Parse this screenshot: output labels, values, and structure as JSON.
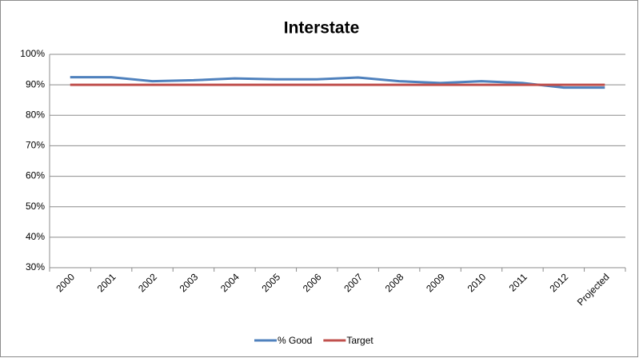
{
  "chart_data": {
    "type": "line",
    "title": "Interstate",
    "categories": [
      "2000",
      "2001",
      "2002",
      "2003",
      "2004",
      "2005",
      "2006",
      "2007",
      "2008",
      "2009",
      "2010",
      "2011",
      "2012",
      "Projected"
    ],
    "series": [
      {
        "name": "% Good",
        "color": "#4f81bd",
        "values": [
          92.5,
          92.5,
          91.2,
          91.5,
          92.1,
          91.8,
          91.8,
          92.4,
          91.2,
          90.6,
          91.2,
          90.6,
          89.1,
          89.1
        ]
      },
      {
        "name": "Target",
        "color": "#c0504d",
        "values": [
          90,
          90,
          90,
          90,
          90,
          90,
          90,
          90,
          90,
          90,
          90,
          90,
          90,
          90
        ]
      }
    ],
    "ylim": [
      30,
      100
    ],
    "yticks": [
      {
        "value": 30,
        "label": "30%"
      },
      {
        "value": 40,
        "label": "40%"
      },
      {
        "value": 50,
        "label": "50%"
      },
      {
        "value": 60,
        "label": "60%"
      },
      {
        "value": 70,
        "label": "70%"
      },
      {
        "value": 80,
        "label": "80%"
      },
      {
        "value": 90,
        "label": "90%"
      },
      {
        "value": 100,
        "label": "100%"
      }
    ],
    "grid": true,
    "legend": "bottom"
  }
}
